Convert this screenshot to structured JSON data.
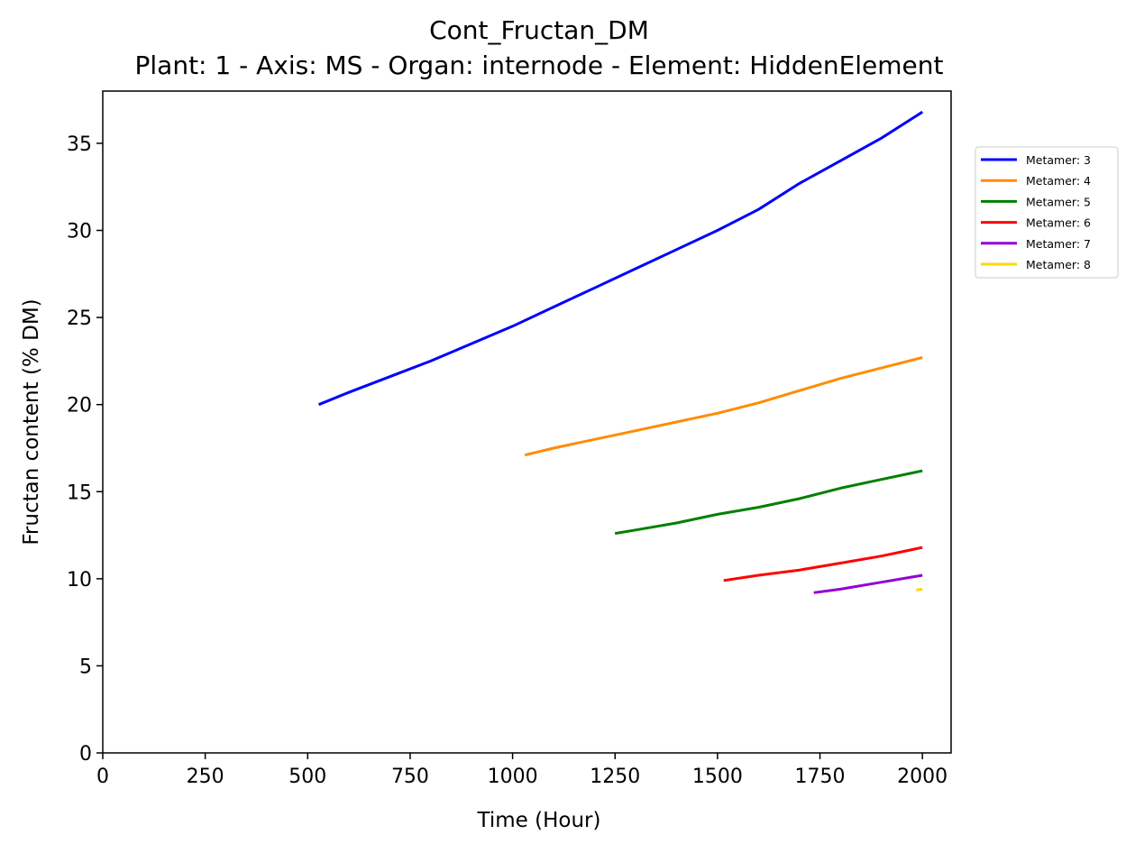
{
  "chart_data": {
    "type": "line",
    "title": "Cont_Fructan_DM",
    "subtitle": "Plant: 1 - Axis: MS - Organ: internode - Element: HiddenElement",
    "xlabel": "Time (Hour)",
    "ylabel": "Fructan content (% DM)",
    "xlim": [
      0,
      2070
    ],
    "ylim": [
      0,
      38
    ],
    "xticks": [
      0,
      250,
      500,
      750,
      1000,
      1250,
      1500,
      1750,
      2000
    ],
    "yticks": [
      0,
      5,
      10,
      15,
      20,
      25,
      30,
      35
    ],
    "grid": false,
    "legend_position": "right, outside top",
    "series": [
      {
        "name": "Metamer: 3",
        "color": "#0000ff",
        "x": [
          527,
          600,
          700,
          800,
          900,
          1000,
          1100,
          1200,
          1300,
          1400,
          1500,
          1600,
          1700,
          1800,
          1900,
          2000
        ],
        "y": [
          20.0,
          20.7,
          21.6,
          22.5,
          23.5,
          24.5,
          25.6,
          26.7,
          27.8,
          28.9,
          30.0,
          31.2,
          32.7,
          34.0,
          35.3,
          36.8
        ]
      },
      {
        "name": "Metamer: 4",
        "color": "#ff8c00",
        "x": [
          1030,
          1100,
          1200,
          1300,
          1400,
          1500,
          1600,
          1700,
          1800,
          1900,
          2000
        ],
        "y": [
          17.1,
          17.5,
          18.0,
          18.5,
          19.0,
          19.5,
          20.1,
          20.8,
          21.5,
          22.1,
          22.7
        ]
      },
      {
        "name": "Metamer: 5",
        "color": "#008000",
        "x": [
          1250,
          1300,
          1400,
          1500,
          1600,
          1700,
          1800,
          1900,
          2000
        ],
        "y": [
          12.6,
          12.8,
          13.2,
          13.7,
          14.1,
          14.6,
          15.2,
          15.7,
          16.2
        ]
      },
      {
        "name": "Metamer: 6",
        "color": "#ff0000",
        "x": [
          1515,
          1600,
          1700,
          1800,
          1900,
          2000
        ],
        "y": [
          9.9,
          10.2,
          10.5,
          10.9,
          11.3,
          11.8
        ]
      },
      {
        "name": "Metamer: 7",
        "color": "#9400d3",
        "x": [
          1735,
          1800,
          1900,
          2000
        ],
        "y": [
          9.2,
          9.4,
          9.8,
          10.2
        ]
      },
      {
        "name": "Metamer: 8",
        "color": "#ffd700",
        "x": [
          1985,
          2000
        ],
        "y": [
          9.35,
          9.4
        ]
      }
    ]
  }
}
